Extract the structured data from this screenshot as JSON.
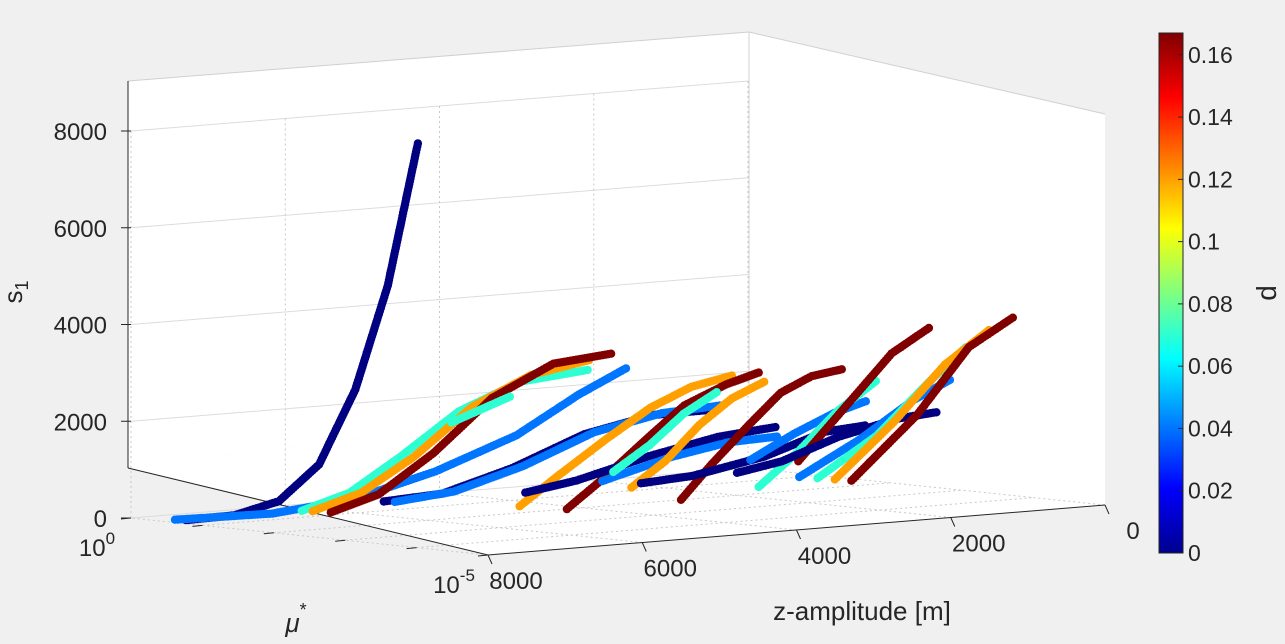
{
  "chart_data": {
    "type": "scatter",
    "title": "",
    "axes": {
      "z_label": "s",
      "z_label_sub": "1",
      "x_label": "z-amplitude [m]",
      "y_label": "μ",
      "y_label_sup": "*",
      "colorbar_label": "d"
    },
    "z_ticks": [
      {
        "value": 0,
        "label": "0"
      },
      {
        "value": 2000,
        "label": "2000"
      },
      {
        "value": 4000,
        "label": "4000"
      },
      {
        "value": 6000,
        "label": "6000"
      },
      {
        "value": 8000,
        "label": "8000"
      }
    ],
    "x_ticks": [
      {
        "value": 8000,
        "label": "8000"
      },
      {
        "value": 6000,
        "label": "6000"
      },
      {
        "value": 4000,
        "label": "4000"
      },
      {
        "value": 2000,
        "label": "2000"
      },
      {
        "value": 0,
        "label": "0"
      }
    ],
    "y_ticks": [
      {
        "exp": 0,
        "base": "10",
        "sup": "0"
      },
      {
        "exp": -5,
        "base": "10",
        "sup": "-5"
      }
    ],
    "colorbar": {
      "min": 0,
      "max": 0.167,
      "ticks": [
        {
          "value": 0,
          "label": "0"
        },
        {
          "value": 0.02,
          "label": "0.02"
        },
        {
          "value": 0.04,
          "label": "0.04"
        },
        {
          "value": 0.06,
          "label": "0.06"
        },
        {
          "value": 0.08,
          "label": "0.08"
        },
        {
          "value": 0.1,
          "label": "0.1"
        },
        {
          "value": 0.12,
          "label": "0.12"
        },
        {
          "value": 0.14,
          "label": "0.14"
        },
        {
          "value": 0.16,
          "label": "0.16"
        }
      ]
    },
    "ranges": {
      "x": [
        0,
        8000
      ],
      "y_log10": [
        -5,
        0
      ],
      "z": [
        0,
        8000
      ]
    },
    "grid": true,
    "series": [
      {
        "d": 0.0,
        "points": [
          [
            7750,
            -0.5,
            0
          ],
          [
            7400,
            -0.8,
            100
          ],
          [
            7100,
            -1.1,
            400
          ],
          [
            6950,
            -1.5,
            1200
          ],
          [
            6850,
            -1.9,
            2800
          ],
          [
            6800,
            -2.3,
            5000
          ],
          [
            6780,
            -2.7,
            8000
          ]
        ]
      },
      {
        "d": 0.04,
        "points": [
          [
            7800,
            -0.4,
            0
          ],
          [
            7000,
            -0.9,
            100
          ],
          [
            6400,
            -1.4,
            400
          ],
          [
            5900,
            -2.0,
            1000
          ],
          [
            5500,
            -2.7,
            1800
          ],
          [
            5250,
            -3.3,
            2700
          ],
          [
            5100,
            -3.8,
            3300
          ]
        ]
      },
      {
        "d": 0.07,
        "points": [
          [
            6250,
            -0.5,
            0
          ],
          [
            6000,
            -0.9,
            400
          ],
          [
            5800,
            -1.4,
            1200
          ],
          [
            5600,
            -2.0,
            2200
          ],
          [
            5450,
            -2.7,
            2900
          ],
          [
            5320,
            -3.5,
            3250
          ]
        ]
      },
      {
        "d": 0.12,
        "points": [
          [
            6200,
            -0.6,
            0
          ],
          [
            5950,
            -1.0,
            400
          ],
          [
            5720,
            -1.5,
            1200
          ],
          [
            5520,
            -2.1,
            2300
          ],
          [
            5400,
            -2.8,
            3050
          ],
          [
            5300,
            -3.5,
            3450
          ]
        ]
      },
      {
        "d": 0.167,
        "points": [
          [
            6150,
            -0.8,
            0
          ],
          [
            5900,
            -1.2,
            400
          ],
          [
            5650,
            -1.7,
            1300
          ],
          [
            5450,
            -2.3,
            2500
          ],
          [
            5300,
            -3.0,
            3300
          ],
          [
            5200,
            -3.7,
            3600
          ]
        ]
      },
      {
        "d": 0.0,
        "points": [
          [
            5000,
            -0.3,
            0
          ],
          [
            4700,
            -0.8,
            200
          ],
          [
            4450,
            -1.5,
            800
          ],
          [
            4250,
            -2.3,
            1600
          ],
          [
            4100,
            -3.1,
            2100
          ],
          [
            4000,
            -3.8,
            2300
          ]
        ]
      },
      {
        "d": 0.04,
        "points": [
          [
            4950,
            -0.4,
            0
          ],
          [
            4650,
            -0.9,
            250
          ],
          [
            4400,
            -1.6,
            850
          ],
          [
            4220,
            -2.4,
            1650
          ],
          [
            4080,
            -3.2,
            2150
          ],
          [
            3980,
            -3.9,
            2400
          ]
        ]
      },
      {
        "d": 0.07,
        "points": [
          [
            4400,
            -0.6,
            1600
          ],
          [
            4300,
            -0.9,
            1900
          ],
          [
            4200,
            -1.2,
            2200
          ]
        ]
      },
      {
        "d": 0.12,
        "points": [
          [
            4350,
            -1.5,
            0
          ],
          [
            4200,
            -1.9,
            700
          ],
          [
            4050,
            -2.4,
            1500
          ],
          [
            3950,
            -2.9,
            2200
          ],
          [
            3880,
            -3.4,
            2700
          ],
          [
            3820,
            -3.9,
            3000
          ]
        ]
      },
      {
        "d": 0.167,
        "points": [
          [
            4200,
            -2.0,
            0
          ],
          [
            4080,
            -2.4,
            700
          ],
          [
            3970,
            -2.9,
            1600
          ],
          [
            3880,
            -3.3,
            2300
          ],
          [
            3800,
            -3.8,
            2800
          ],
          [
            3750,
            -4.2,
            3100
          ]
        ]
      },
      {
        "d": 0.0,
        "points": [
          [
            3350,
            -0.5,
            0
          ],
          [
            3150,
            -1.0,
            300
          ],
          [
            2950,
            -1.8,
            900
          ],
          [
            2800,
            -2.6,
            1400
          ],
          [
            2700,
            -3.3,
            1700
          ]
        ]
      },
      {
        "d": 0.04,
        "points": [
          [
            3000,
            -1.2,
            300
          ],
          [
            2850,
            -2.0,
            900
          ],
          [
            2750,
            -2.7,
            1300
          ],
          [
            2680,
            -3.3,
            1500
          ]
        ]
      },
      {
        "d": 0.07,
        "points": [
          [
            2950,
            -1.3,
            500
          ],
          [
            2850,
            -1.7,
            1100
          ],
          [
            2780,
            -2.1,
            1800
          ],
          [
            2720,
            -2.5,
            2300
          ]
        ]
      },
      {
        "d": 0.12,
        "points": [
          [
            2900,
            -1.5,
            200
          ],
          [
            2830,
            -1.9,
            800
          ],
          [
            2760,
            -2.3,
            1600
          ],
          [
            2710,
            -2.7,
            2200
          ],
          [
            2660,
            -3.1,
            2600
          ]
        ]
      },
      {
        "d": 0.167,
        "points": [
          [
            2720,
            -2.0,
            0
          ],
          [
            2690,
            -2.4,
            800
          ],
          [
            2660,
            -2.9,
            1700
          ],
          [
            2630,
            -3.3,
            2400
          ],
          [
            2600,
            -3.7,
            2800
          ],
          [
            2580,
            -4.1,
            3000
          ]
        ]
      },
      {
        "d": 0.0,
        "points": [
          [
            1850,
            -0.5,
            0
          ],
          [
            1650,
            -1.0,
            200
          ],
          [
            1450,
            -1.8,
            700
          ],
          [
            1320,
            -2.5,
            1300
          ],
          [
            1260,
            -3.0,
            1500
          ]
        ]
      },
      {
        "d": 0.04,
        "points": [
          [
            1450,
            -1.6,
            600
          ],
          [
            1350,
            -2.1,
            1200
          ],
          [
            1290,
            -2.6,
            1700
          ],
          [
            1250,
            -3.0,
            2000
          ]
        ]
      },
      {
        "d": 0.07,
        "points": [
          [
            1250,
            -1.5,
            0
          ],
          [
            1200,
            -2.0,
            800
          ],
          [
            1160,
            -2.5,
            1700
          ],
          [
            1120,
            -3.0,
            2400
          ]
        ]
      },
      {
        "d": 0.167,
        "points": [
          [
            1200,
            -2.0,
            600
          ],
          [
            1150,
            -2.6,
            1800
          ],
          [
            1100,
            -3.2,
            3000
          ],
          [
            1080,
            -3.7,
            3600
          ]
        ]
      },
      {
        "d": 0.0,
        "points": [
          [
            420,
            -0.3,
            0
          ],
          [
            300,
            -0.8,
            300
          ],
          [
            220,
            -1.5,
            900
          ],
          [
            170,
            -2.3,
            1400
          ],
          [
            150,
            -2.8,
            1600
          ]
        ]
      },
      {
        "d": 0.04,
        "points": [
          [
            260,
            -1.0,
            0
          ],
          [
            210,
            -1.8,
            900
          ],
          [
            180,
            -2.5,
            1800
          ],
          [
            160,
            -3.0,
            2300
          ]
        ]
      },
      {
        "d": 0.07,
        "points": [
          [
            210,
            -1.2,
            0
          ],
          [
            180,
            -2.0,
            1000
          ],
          [
            160,
            -2.7,
            2200
          ],
          [
            140,
            -3.2,
            3000
          ]
        ]
      },
      {
        "d": 0.12,
        "points": [
          [
            170,
            -1.4,
            0
          ],
          [
            150,
            -2.2,
            1300
          ],
          [
            130,
            -2.9,
            2600
          ],
          [
            115,
            -3.5,
            3400
          ]
        ]
      },
      {
        "d": 0.167,
        "points": [
          [
            140,
            -1.6,
            0
          ],
          [
            120,
            -2.5,
            1500
          ],
          [
            100,
            -3.2,
            3000
          ],
          [
            85,
            -3.8,
            3700
          ]
        ]
      }
    ]
  }
}
